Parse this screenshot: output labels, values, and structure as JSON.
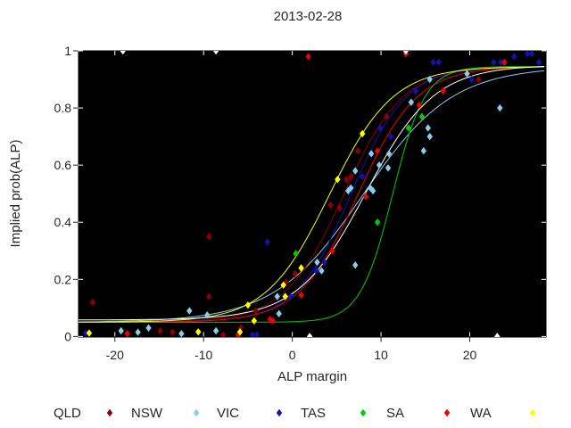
{
  "chart_data": {
    "type": "scatter",
    "title": "2013-02-28",
    "xlabel": "ALP margin",
    "ylabel": "Implied prob(ALP)",
    "xlim": [
      -24.1,
      28.6
    ],
    "ylim": [
      0,
      1
    ],
    "xticks": [
      -20,
      -10,
      0,
      10,
      20
    ],
    "yticks": [
      0,
      0.2,
      0.4,
      0.6,
      0.8,
      1
    ],
    "grid": "off",
    "plot_background": "#000000",
    "page_background": "#ffffff",
    "text_color": "#262626",
    "legend_position": "bottom-horizontal",
    "marker_shape": "diamond",
    "legend": {
      "items": [
        {
          "label": "QLD",
          "color": "#8B0000"
        },
        {
          "label": "NSW",
          "color": "#87CEEB"
        },
        {
          "label": "VIC",
          "color": "#1313AC"
        },
        {
          "label": "TAS",
          "color": "#00CC00"
        },
        {
          "label": "SA",
          "color": "#EE0000"
        },
        {
          "label": "WA",
          "color": "#FFFF00"
        }
      ]
    },
    "series": [
      {
        "name": "QLD",
        "color": "#8B0000",
        "points": [
          [
            -22.5,
            0.12
          ],
          [
            -14.9,
            0.02
          ],
          [
            -13.5,
            0.015
          ],
          [
            -9.4,
            0.35
          ],
          [
            -9.4,
            0.14
          ],
          [
            -7.8,
            0.005
          ],
          [
            -5.8,
            0.03
          ],
          [
            -4.1,
            0.09
          ],
          [
            -0.7,
            0.19
          ],
          [
            0.3,
            0.22
          ],
          [
            4.3,
            0.46
          ],
          [
            5.3,
            0.45
          ],
          [
            6.1,
            0.55
          ],
          [
            6.6,
            0.56
          ],
          [
            7.4,
            0.65
          ],
          [
            10.6,
            0.77
          ],
          [
            21.0,
            0.9
          ]
        ]
      },
      {
        "name": "NSW",
        "color": "#87CEEB",
        "points": [
          [
            -19.3,
            0.02
          ],
          [
            -17.4,
            0.015
          ],
          [
            -16.2,
            0.03
          ],
          [
            -12.5,
            0.01
          ],
          [
            -11.6,
            0.09
          ],
          [
            -9.6,
            0.075
          ],
          [
            -8.6,
            0.02
          ],
          [
            -1.7,
            0.14
          ],
          [
            -1.5,
            0.08
          ],
          [
            2.8,
            0.26
          ],
          [
            3.3,
            0.23
          ],
          [
            6.3,
            0.51
          ],
          [
            6.6,
            0.52
          ],
          [
            7.1,
            0.58
          ],
          [
            7.1,
            0.25
          ],
          [
            8.8,
            0.52
          ],
          [
            9.1,
            0.51
          ],
          [
            8.9,
            0.64
          ],
          [
            9.8,
            0.6
          ],
          [
            10.8,
            0.59
          ],
          [
            10.9,
            0.64
          ],
          [
            13.4,
            0.82
          ],
          [
            14.8,
            0.65
          ],
          [
            15.3,
            0.73
          ],
          [
            15.5,
            0.7
          ],
          [
            15.5,
            0.9
          ],
          [
            19.7,
            0.92
          ],
          [
            23.4,
            0.8
          ]
        ]
      },
      {
        "name": "VIC",
        "color": "#1313AC",
        "points": [
          [
            -23.3,
            0.012
          ],
          [
            -4.5,
            0.006
          ],
          [
            -4.0,
            0.006
          ],
          [
            -2.8,
            0.33
          ],
          [
            -0.2,
            0.14
          ],
          [
            2.7,
            0.23
          ],
          [
            3.6,
            0.26
          ],
          [
            7.9,
            0.56
          ],
          [
            9.9,
            0.73
          ],
          [
            11.1,
            0.7
          ],
          [
            13.9,
            0.86
          ],
          [
            15.9,
            0.96
          ],
          [
            16.5,
            0.96
          ],
          [
            20.2,
            0.9
          ],
          [
            22.7,
            0.96
          ],
          [
            23.5,
            0.96
          ],
          [
            25.0,
            0.98
          ],
          [
            26.5,
            0.99
          ],
          [
            27.0,
            0.99
          ],
          [
            27.8,
            0.96
          ]
        ]
      },
      {
        "name": "TAS",
        "color": "#00CC00",
        "points": [
          [
            0.4,
            0.29
          ],
          [
            9.6,
            0.4
          ],
          [
            13.1,
            0.73
          ],
          [
            14.6,
            0.77
          ]
        ]
      },
      {
        "name": "SA",
        "color": "#EE0000",
        "points": [
          [
            -18.6,
            0.01
          ],
          [
            -6.1,
            0.006
          ],
          [
            -2.5,
            0.06
          ],
          [
            -2.2,
            0.055
          ],
          [
            1.0,
            0.145
          ],
          [
            1.8,
            0.98
          ],
          [
            4.5,
            0.3
          ],
          [
            8.3,
            0.49
          ],
          [
            9.6,
            0.65
          ],
          [
            12.8,
            0.99
          ],
          [
            14.3,
            0.81
          ],
          [
            17.0,
            0.86
          ],
          [
            23.9,
            0.96
          ]
        ]
      },
      {
        "name": "WA",
        "color": "#FFFF00",
        "points": [
          [
            -22.9,
            0.012
          ],
          [
            -10.6,
            0.016
          ],
          [
            -5.9,
            0.016
          ],
          [
            -5.0,
            0.11
          ],
          [
            -4.3,
            0.055
          ],
          [
            -1.0,
            0.18
          ],
          [
            -0.8,
            0.14
          ],
          [
            1.0,
            0.24
          ],
          [
            5.1,
            0.55
          ],
          [
            7.9,
            0.71
          ]
        ]
      }
    ],
    "white_marks": {
      "color": "#FFFFFF",
      "points": [
        [
          -19.1,
          1.0
        ],
        [
          -8.6,
          1.0
        ],
        [
          12.8,
          1.0
        ],
        [
          1.96,
          0.0
        ],
        [
          23.1,
          0.0
        ]
      ]
    },
    "curves": [
      {
        "name": "NSW",
        "color": "#87CEEB",
        "mid": 8.0,
        "k": 0.2,
        "lo": 0.05,
        "hi": 0.945
      },
      {
        "name": "QLD",
        "color": "#8B0000",
        "mid": 5.8,
        "k": 0.3,
        "lo": 0.05,
        "hi": 0.945
      },
      {
        "name": "VIC",
        "color": "#1313AC",
        "mid": 6.6,
        "k": 0.32,
        "lo": 0.05,
        "hi": 0.945
      },
      {
        "name": "SA",
        "color": "#EE0000",
        "mid": 7.4,
        "k": 0.3,
        "lo": 0.05,
        "hi": 0.945
      },
      {
        "name": "TAS",
        "color": "#00CC00",
        "mid": 11.3,
        "k": 0.55,
        "lo": 0.05,
        "hi": 0.945
      },
      {
        "name": "WA",
        "color": "#FFFF00",
        "mid": 4.2,
        "k": 0.28,
        "lo": 0.05,
        "hi": 0.945
      },
      {
        "name": "overall",
        "color": "#FFFFFF",
        "mid": 8.3,
        "k": 0.26,
        "lo": 0.058,
        "hi": 0.95
      }
    ]
  }
}
